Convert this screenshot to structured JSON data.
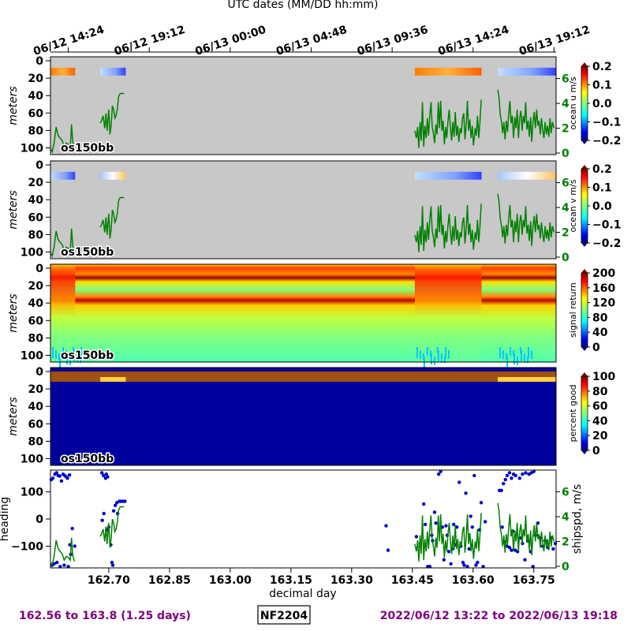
{
  "chart_data": {
    "type": "heatmap",
    "top_axis_label": "UTC dates (MM/DD hh:mm)",
    "top_ticks": [
      "06/12 14:24",
      "06/12 19:12",
      "06/13 00:00",
      "06/13 04:48",
      "06/13 09:36",
      "06/13 14:24",
      "06/13 19:12"
    ],
    "top_tick_values": [
      162.6,
      162.8,
      163.0,
      163.2,
      163.4,
      163.6,
      163.8
    ],
    "xlabel": "decimal day",
    "xlim": [
      162.556,
      163.805
    ],
    "x_ticks": [
      "162.70",
      "162.85",
      "163.00",
      "163.15",
      "163.30",
      "163.45",
      "163.60",
      "163.75"
    ],
    "x_tick_values": [
      162.7,
      162.85,
      163.0,
      163.15,
      163.3,
      163.45,
      163.6,
      163.75
    ],
    "depth_ylabel": "meters",
    "depth_ylim": [
      0,
      105
    ],
    "depth_ticks": [
      0,
      20,
      40,
      60,
      80,
      100
    ],
    "instrument_label": "os150bb",
    "shipspd_ticks": [
      0,
      2,
      4,
      6
    ],
    "shipspd_ylim": [
      0,
      7.5
    ],
    "panels": [
      {
        "name": "ocean u",
        "colorbar_label": "ocean u m/s",
        "clim": [
          -0.2,
          0.2
        ],
        "ticks": [
          "0.2",
          "0.1",
          "0.0",
          "−0.1",
          "−0.2"
        ],
        "colormap": "jet",
        "overlay": "shipspd"
      },
      {
        "name": "ocean v",
        "colorbar_label": "ocean v m/s",
        "clim": [
          -0.2,
          0.2
        ],
        "ticks": [
          "0.2",
          "0.1",
          "0.0",
          "−0.1",
          "−0.2"
        ],
        "colormap": "jet",
        "overlay": "shipspd"
      },
      {
        "name": "signal return",
        "colorbar_label": "signal return",
        "clim": [
          0,
          200
        ],
        "ticks": [
          "200",
          "160",
          "120",
          "80",
          "40",
          "0"
        ],
        "colormap": "jet"
      },
      {
        "name": "percent good",
        "colorbar_label": "percent good",
        "clim": [
          0,
          100
        ],
        "ticks": [
          "100",
          "80",
          "60",
          "40",
          "20",
          "0"
        ],
        "colormap": "jet"
      }
    ],
    "heading": {
      "ylabel": "heading",
      "ylim": [
        -180,
        180
      ],
      "ticks": [
        100,
        0,
        -100
      ],
      "tick_labels": [
        "100",
        "0",
        "−100"
      ],
      "points": [
        [
          162.558,
          145
        ],
        [
          162.562,
          150
        ],
        [
          162.567,
          165
        ],
        [
          162.571,
          170
        ],
        [
          162.575,
          160
        ],
        [
          162.579,
          158
        ],
        [
          162.583,
          140
        ],
        [
          162.587,
          165
        ],
        [
          162.591,
          160
        ],
        [
          162.595,
          155
        ],
        [
          162.598,
          150
        ],
        [
          162.603,
          162
        ],
        [
          162.56,
          -170
        ],
        [
          162.565,
          -165
        ],
        [
          162.572,
          -160
        ],
        [
          162.58,
          -175
        ],
        [
          162.59,
          -170
        ],
        [
          162.6,
          -175
        ],
        [
          162.604,
          -95
        ],
        [
          162.606,
          -130
        ],
        [
          162.61,
          -35
        ],
        [
          162.616,
          -100
        ],
        [
          162.683,
          170
        ],
        [
          162.687,
          160
        ],
        [
          162.692,
          150
        ],
        [
          162.694,
          165
        ],
        [
          162.697,
          155
        ],
        [
          162.684,
          -5
        ],
        [
          162.688,
          20
        ],
        [
          162.695,
          -40
        ],
        [
          162.7,
          -30
        ],
        [
          162.705,
          -95
        ],
        [
          162.708,
          -160
        ],
        [
          162.71,
          -170
        ],
        [
          162.712,
          30
        ],
        [
          162.716,
          50
        ],
        [
          162.72,
          60
        ],
        [
          162.722,
          20
        ],
        [
          162.726,
          65
        ],
        [
          162.73,
          65
        ],
        [
          162.735,
          65
        ],
        [
          162.74,
          65
        ],
        [
          163.385,
          -25
        ],
        [
          163.39,
          -115
        ],
        [
          163.46,
          -65
        ],
        [
          163.47,
          -90
        ],
        [
          163.478,
          55
        ],
        [
          163.482,
          -20
        ],
        [
          163.488,
          -175
        ],
        [
          163.493,
          -175
        ],
        [
          163.498,
          -60
        ],
        [
          163.5,
          -80
        ],
        [
          163.505,
          25
        ],
        [
          163.508,
          -15
        ],
        [
          163.515,
          165
        ],
        [
          163.52,
          175
        ],
        [
          163.524,
          -30
        ],
        [
          163.528,
          -150
        ],
        [
          163.533,
          -25
        ],
        [
          163.536,
          -60
        ],
        [
          163.54,
          -120
        ],
        [
          163.545,
          -165
        ],
        [
          163.548,
          -110
        ],
        [
          163.552,
          -20
        ],
        [
          163.556,
          -95
        ],
        [
          163.56,
          -30
        ],
        [
          163.566,
          135
        ],
        [
          163.57,
          -100
        ],
        [
          163.575,
          -160
        ],
        [
          163.578,
          -170
        ],
        [
          163.582,
          95
        ],
        [
          163.586,
          -175
        ],
        [
          163.59,
          -110
        ],
        [
          163.594,
          10
        ],
        [
          163.598,
          -30
        ],
        [
          163.603,
          160
        ],
        [
          163.607,
          -170
        ],
        [
          163.611,
          -160
        ],
        [
          163.616,
          -40
        ],
        [
          163.62,
          60
        ],
        [
          163.625,
          -175
        ],
        [
          163.63,
          -10
        ],
        [
          163.665,
          105
        ],
        [
          163.67,
          105
        ],
        [
          163.675,
          130
        ],
        [
          163.68,
          145
        ],
        [
          163.684,
          160
        ],
        [
          163.69,
          170
        ],
        [
          163.695,
          150
        ],
        [
          163.7,
          165
        ],
        [
          163.705,
          160
        ],
        [
          163.715,
          150
        ],
        [
          163.722,
          165
        ],
        [
          163.73,
          170
        ],
        [
          163.738,
          165
        ],
        [
          163.744,
          170
        ],
        [
          163.75,
          175
        ],
        [
          163.672,
          -30
        ],
        [
          163.678,
          -85
        ],
        [
          163.684,
          -100
        ],
        [
          163.69,
          -105
        ],
        [
          163.695,
          -115
        ],
        [
          163.698,
          -45
        ],
        [
          163.704,
          -115
        ],
        [
          163.71,
          -120
        ],
        [
          163.716,
          -70
        ],
        [
          163.722,
          -90
        ],
        [
          163.728,
          -150
        ],
        [
          163.735,
          -80
        ],
        [
          163.742,
          -120
        ],
        [
          163.748,
          -175
        ],
        [
          163.754,
          -60
        ],
        [
          163.76,
          -15
        ],
        [
          163.766,
          -70
        ],
        [
          163.772,
          -100
        ],
        [
          163.778,
          -80
        ],
        [
          163.785,
          -105
        ],
        [
          163.792,
          -70
        ],
        [
          163.798,
          -110
        ],
        [
          163.803,
          -90
        ]
      ]
    },
    "shipspd": {
      "ylabel": "shipspd, m/s",
      "segments": [
        [
          [
            162.557,
            0.3
          ],
          [
            162.56,
            0.1
          ],
          [
            162.565,
            0.8
          ],
          [
            162.57,
            2.1
          ],
          [
            162.575,
            1.4
          ],
          [
            162.58,
            1.2
          ],
          [
            162.585,
            1.0
          ],
          [
            162.59,
            0.5
          ],
          [
            162.595,
            0.8
          ],
          [
            162.6,
            0.7
          ],
          [
            162.605,
            0.5
          ],
          [
            162.608,
            2.3
          ],
          [
            162.611,
            0.9
          ],
          [
            162.615,
            0.4
          ]
        ],
        [
          [
            162.679,
            2.4
          ],
          [
            162.682,
            2.6
          ],
          [
            162.686,
            3.0
          ],
          [
            162.69,
            2.0
          ],
          [
            162.693,
            3.2
          ],
          [
            162.696,
            1.8
          ],
          [
            162.7,
            3.5
          ],
          [
            162.703,
            1.5
          ],
          [
            162.706,
            2.3
          ],
          [
            162.709,
            3.8
          ],
          [
            162.712,
            3.5
          ],
          [
            162.715,
            2.8
          ],
          [
            162.718,
            3.0
          ],
          [
            162.721,
            3.5
          ],
          [
            162.724,
            4.5
          ],
          [
            162.728,
            4.8
          ],
          [
            162.732,
            4.8
          ],
          [
            162.738,
            4.8
          ]
        ],
        [
          [
            163.456,
            1.8
          ],
          [
            163.46,
            1.2
          ],
          [
            163.463,
            2.1
          ],
          [
            163.466,
            0.4
          ],
          [
            163.469,
            2.5
          ],
          [
            163.472,
            1.0
          ],
          [
            163.475,
            4.1
          ],
          [
            163.478,
            0.5
          ],
          [
            163.481,
            2.2
          ],
          [
            163.484,
            1.2
          ],
          [
            163.487,
            2.8
          ],
          [
            163.49,
            1.4
          ],
          [
            163.493,
            3.0
          ],
          [
            163.496,
            4.1
          ],
          [
            163.499,
            2.1
          ],
          [
            163.502,
            1.6
          ],
          [
            163.505,
            0.8
          ],
          [
            163.508,
            2.3
          ],
          [
            163.511,
            1.5
          ],
          [
            163.514,
            4.1
          ],
          [
            163.517,
            2.0
          ],
          [
            163.52,
            4.2
          ],
          [
            163.523,
            1.8
          ],
          [
            163.526,
            2.6
          ],
          [
            163.529,
            0.7
          ],
          [
            163.532,
            2.1
          ],
          [
            163.535,
            1.2
          ],
          [
            163.538,
            2.6
          ],
          [
            163.541,
            3.5
          ],
          [
            163.544,
            2.0
          ],
          [
            163.547,
            1.0
          ],
          [
            163.55,
            2.5
          ],
          [
            163.553,
            1.3
          ],
          [
            163.556,
            3.3
          ],
          [
            163.559,
            1.4
          ],
          [
            163.562,
            2.2
          ],
          [
            163.565,
            0.9
          ],
          [
            163.568,
            2.0
          ],
          [
            163.571,
            1.6
          ],
          [
            163.574,
            2.8
          ],
          [
            163.577,
            3.2
          ],
          [
            163.58,
            1.1
          ],
          [
            163.583,
            2.3
          ],
          [
            163.586,
            4.2
          ],
          [
            163.589,
            1.8
          ],
          [
            163.592,
            2.7
          ],
          [
            163.595,
            1.2
          ],
          [
            163.598,
            2.2
          ],
          [
            163.601,
            0.6
          ],
          [
            163.605,
            2.0
          ],
          [
            163.608,
            1.4
          ],
          [
            163.611,
            3.0
          ],
          [
            163.614,
            1.2
          ],
          [
            163.617,
            2.5
          ],
          [
            163.62,
            4.3
          ]
        ],
        [
          [
            163.661,
            5.1
          ],
          [
            163.664,
            4.5
          ],
          [
            163.667,
            3.1
          ],
          [
            163.67,
            2.6
          ],
          [
            163.673,
            1.6
          ],
          [
            163.676,
            2.5
          ],
          [
            163.679,
            1.1
          ],
          [
            163.682,
            2.6
          ],
          [
            163.685,
            1.7
          ],
          [
            163.688,
            3.2
          ],
          [
            163.691,
            4.2
          ],
          [
            163.694,
            2.4
          ],
          [
            163.697,
            3.0
          ],
          [
            163.7,
            1.2
          ],
          [
            163.703,
            2.9
          ],
          [
            163.706,
            2.0
          ],
          [
            163.709,
            3.5
          ],
          [
            163.712,
            1.2
          ],
          [
            163.715,
            2.8
          ],
          [
            163.718,
            3.4
          ],
          [
            163.721,
            1.8
          ],
          [
            163.724,
            3.0
          ],
          [
            163.727,
            2.4
          ],
          [
            163.73,
            4.1
          ],
          [
            163.733,
            1.9
          ],
          [
            163.736,
            2.6
          ],
          [
            163.739,
            1.3
          ],
          [
            163.742,
            2.9
          ],
          [
            163.745,
            0.9
          ],
          [
            163.748,
            2.5
          ],
          [
            163.751,
            3.3
          ],
          [
            163.754,
            2.0
          ],
          [
            163.757,
            3.5
          ],
          [
            163.76,
            2.2
          ],
          [
            163.763,
            2.6
          ],
          [
            163.766,
            1.5
          ],
          [
            163.769,
            2.8
          ],
          [
            163.772,
            1.8
          ],
          [
            163.775,
            1.2
          ],
          [
            163.778,
            2.5
          ],
          [
            163.781,
            1.5
          ],
          [
            163.784,
            2.2
          ],
          [
            163.787,
            1.3
          ],
          [
            163.79,
            2.8
          ],
          [
            163.793,
            1.6
          ],
          [
            163.796,
            2.5
          ],
          [
            163.8,
            2.0
          ]
        ]
      ]
    },
    "data_gaps": [
      [
        162.617,
        162.679
      ],
      [
        162.742,
        163.456
      ],
      [
        163.621,
        163.661
      ]
    ],
    "footer_left": "162.56 to 163.8 (1.25 days)",
    "cruise_id": "NF2204",
    "footer_right": "2022/06/12 13:22 to 2022/06/13 19:18",
    "colors": {
      "shipspd": "#008000",
      "heading": "#0000cc",
      "footer": "#800080",
      "nodata": "#c8c8c8"
    }
  }
}
